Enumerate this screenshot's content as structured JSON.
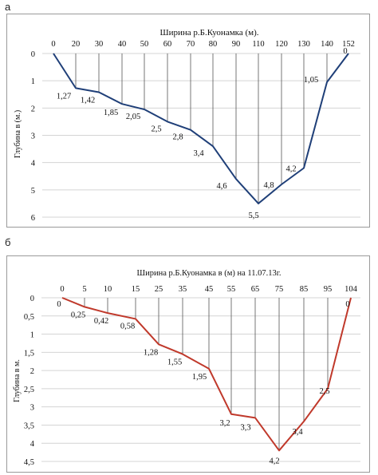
{
  "panels": [
    {
      "letter": "а"
    },
    {
      "letter": "б"
    }
  ],
  "chart_data": [
    {
      "type": "line",
      "title": "Ширина р.Б.Куонамка (м).",
      "xlabel": "",
      "ylabel": "Глубина в (м.)",
      "x_ticks": [
        "0",
        "20",
        "30",
        "40",
        "50",
        "60",
        "70",
        "80",
        "90",
        "110",
        "120",
        "130",
        "140",
        "152"
      ],
      "depths": [
        0,
        1.27,
        1.42,
        1.85,
        2.05,
        2.5,
        2.8,
        3.4,
        4.6,
        5.5,
        4.8,
        4.2,
        1.05,
        0
      ],
      "data_labels": [
        "",
        "1,27",
        "1,42",
        "1,85",
        "2,05",
        "2,5",
        "2,8",
        "3,4",
        "4,6",
        "5,5",
        "4,8",
        "4,2",
        "1,05",
        "0"
      ],
      "y_ticks": [
        "0",
        "1",
        "2",
        "3",
        "4",
        "5",
        "6"
      ],
      "ylim": [
        0,
        6
      ],
      "y_inverted": true,
      "line_color": "#1f3f78",
      "grid": true
    },
    {
      "type": "line",
      "title": "Ширина р.Б.Куонамка в (м) на 11.07.13г.",
      "xlabel": "",
      "ylabel": "Глубина в м.",
      "x_ticks": [
        "0",
        "5",
        "10",
        "15",
        "25",
        "35",
        "45",
        "55",
        "65",
        "75",
        "85",
        "95",
        "104"
      ],
      "depths": [
        0,
        0.25,
        0.42,
        0.58,
        1.28,
        1.55,
        1.95,
        3.2,
        3.3,
        4.2,
        3.4,
        2.5,
        0
      ],
      "data_labels": [
        "0",
        "0,25",
        "0,42",
        "0,58",
        "1,28",
        "1,55",
        "1,95",
        "3,2",
        "3,3",
        "4,2",
        "3,4",
        "2,5",
        "0"
      ],
      "y_ticks": [
        "0",
        "0,5",
        "1",
        "1,5",
        "2",
        "2,5",
        "3",
        "3,5",
        "4",
        "4,5"
      ],
      "ylim": [
        0,
        4.5
      ],
      "y_inverted": true,
      "line_color": "#c0392b",
      "grid": true
    }
  ]
}
